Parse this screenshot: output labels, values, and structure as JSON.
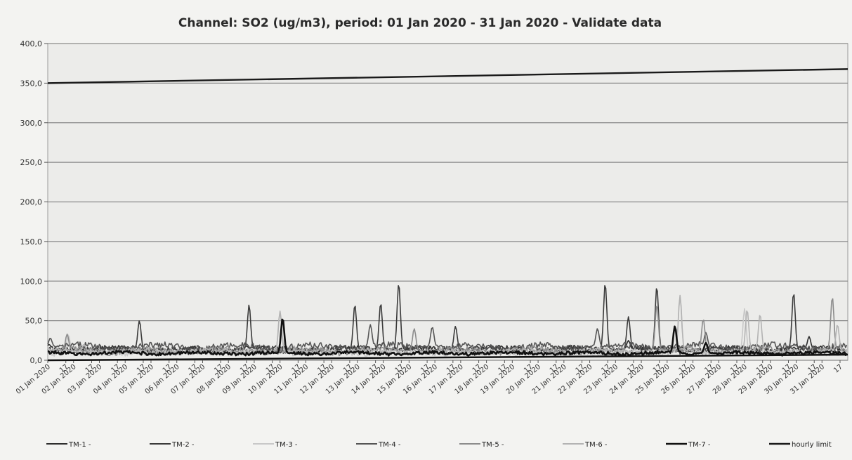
{
  "chart_data": {
    "type": "line",
    "title": "Channel: SO2 (ug/m3), period: 01 Jan 2020 - 31 Jan 2020 - Validate data",
    "xlabel": "",
    "ylabel": "",
    "ylim": [
      0,
      400
    ],
    "y_ticks": [
      "0,0",
      "50,0",
      "100,0",
      "150,0",
      "200,0",
      "250,0",
      "300,0",
      "350,0",
      "400,0"
    ],
    "grid": true,
    "legend_position": "bottom",
    "x_tick_labels": [
      "01 Jan 2020",
      "17",
      "02 Jan 2020",
      "17",
      "03 Jan 2020",
      "17",
      "04 Jan 2020",
      "17",
      "05 Jan 2020",
      "17",
      "06 Jan 2020",
      "17",
      "07 Jan 2020",
      "17",
      "08 Jan 2020",
      "17",
      "09 Jan 2020",
      "17",
      "10 Jan 2020",
      "17",
      "11 Jan 2020",
      "17",
      "12 Jan 2020",
      "17",
      "13 Jan 2020",
      "17",
      "14 Jan 2020",
      "17",
      "15 Jan 2020",
      "17",
      "16 Jan 2020",
      "17",
      "17 Jan 2020",
      "17",
      "18 Jan 2020",
      "17",
      "19 Jan 2020",
      "17",
      "20 Jan 2020",
      "17",
      "21 Jan 2020",
      "17",
      "22 Jan 2020",
      "17",
      "23 Jan 2020",
      "17",
      "24 Jan 2020",
      "17",
      "25 Jan 2020",
      "17",
      "26 Jan 2020",
      "17",
      "27 Jan 2020",
      "17",
      "28 Jan 2020",
      "17",
      "29 Jan 2020",
      "17",
      "30 Jan 2020",
      "17",
      "31 Jan 2020",
      "17"
    ],
    "x_range_days": [
      1,
      32
    ],
    "series": [
      {
        "name": "TM-1 -",
        "color": "#2e2e2e",
        "baseline": 14,
        "noise": 3,
        "peaks": [
          [
            1.05,
            20
          ],
          [
            8.7,
            18
          ],
          [
            14.0,
            22
          ],
          [
            23.5,
            25
          ],
          [
            30.5,
            30
          ]
        ]
      },
      {
        "name": "TM-2 -",
        "color": "#3a3a3a",
        "baseline": 13,
        "noise": 4,
        "peaks": [
          [
            4.55,
            50
          ],
          [
            8.8,
            70
          ],
          [
            12.9,
            70
          ],
          [
            13.9,
            72
          ],
          [
            14.6,
            97
          ],
          [
            16.8,
            43
          ],
          [
            22.6,
            97
          ],
          [
            23.5,
            55
          ],
          [
            24.6,
            93
          ],
          [
            29.9,
            85
          ]
        ]
      },
      {
        "name": "TM-3 -",
        "color": "#c8c8c8",
        "baseline": 10,
        "noise": 3,
        "peaks": [
          [
            1.8,
            32
          ],
          [
            10.0,
            60
          ],
          [
            25.5,
            80
          ],
          [
            28.0,
            65
          ]
        ]
      },
      {
        "name": "TM-4 -",
        "color": "#555555",
        "baseline": 17,
        "noise": 4,
        "peaks": [
          [
            1.1,
            28
          ],
          [
            13.5,
            45
          ],
          [
            15.9,
            42
          ],
          [
            22.3,
            40
          ],
          [
            26.5,
            35
          ]
        ]
      },
      {
        "name": "TM-5 -",
        "color": "#8c8c8c",
        "baseline": 12,
        "noise": 4,
        "peaks": [
          [
            1.75,
            33
          ],
          [
            15.2,
            40
          ],
          [
            24.6,
            70
          ],
          [
            26.4,
            52
          ],
          [
            31.4,
            80
          ]
        ]
      },
      {
        "name": "TM-6 -",
        "color": "#b3b3b3",
        "baseline": 11,
        "noise": 3,
        "peaks": [
          [
            2.4,
            20
          ],
          [
            10.0,
            62
          ],
          [
            25.5,
            82
          ],
          [
            28.1,
            64
          ],
          [
            28.6,
            58
          ],
          [
            31.6,
            45
          ]
        ]
      },
      {
        "name": "TM-7 -",
        "color": "#111111",
        "baseline": 9,
        "noise": 2,
        "peaks": [
          [
            10.1,
            53
          ],
          [
            25.3,
            43
          ],
          [
            26.5,
            22
          ]
        ]
      },
      {
        "name": "hourly limit",
        "color": "#1a1a1a",
        "baseline": 0,
        "noise": 0,
        "peaks": []
      }
    ],
    "reference_lines": [
      {
        "name": "hourly limit",
        "value": 350,
        "color": "#1a1a1a"
      }
    ]
  }
}
